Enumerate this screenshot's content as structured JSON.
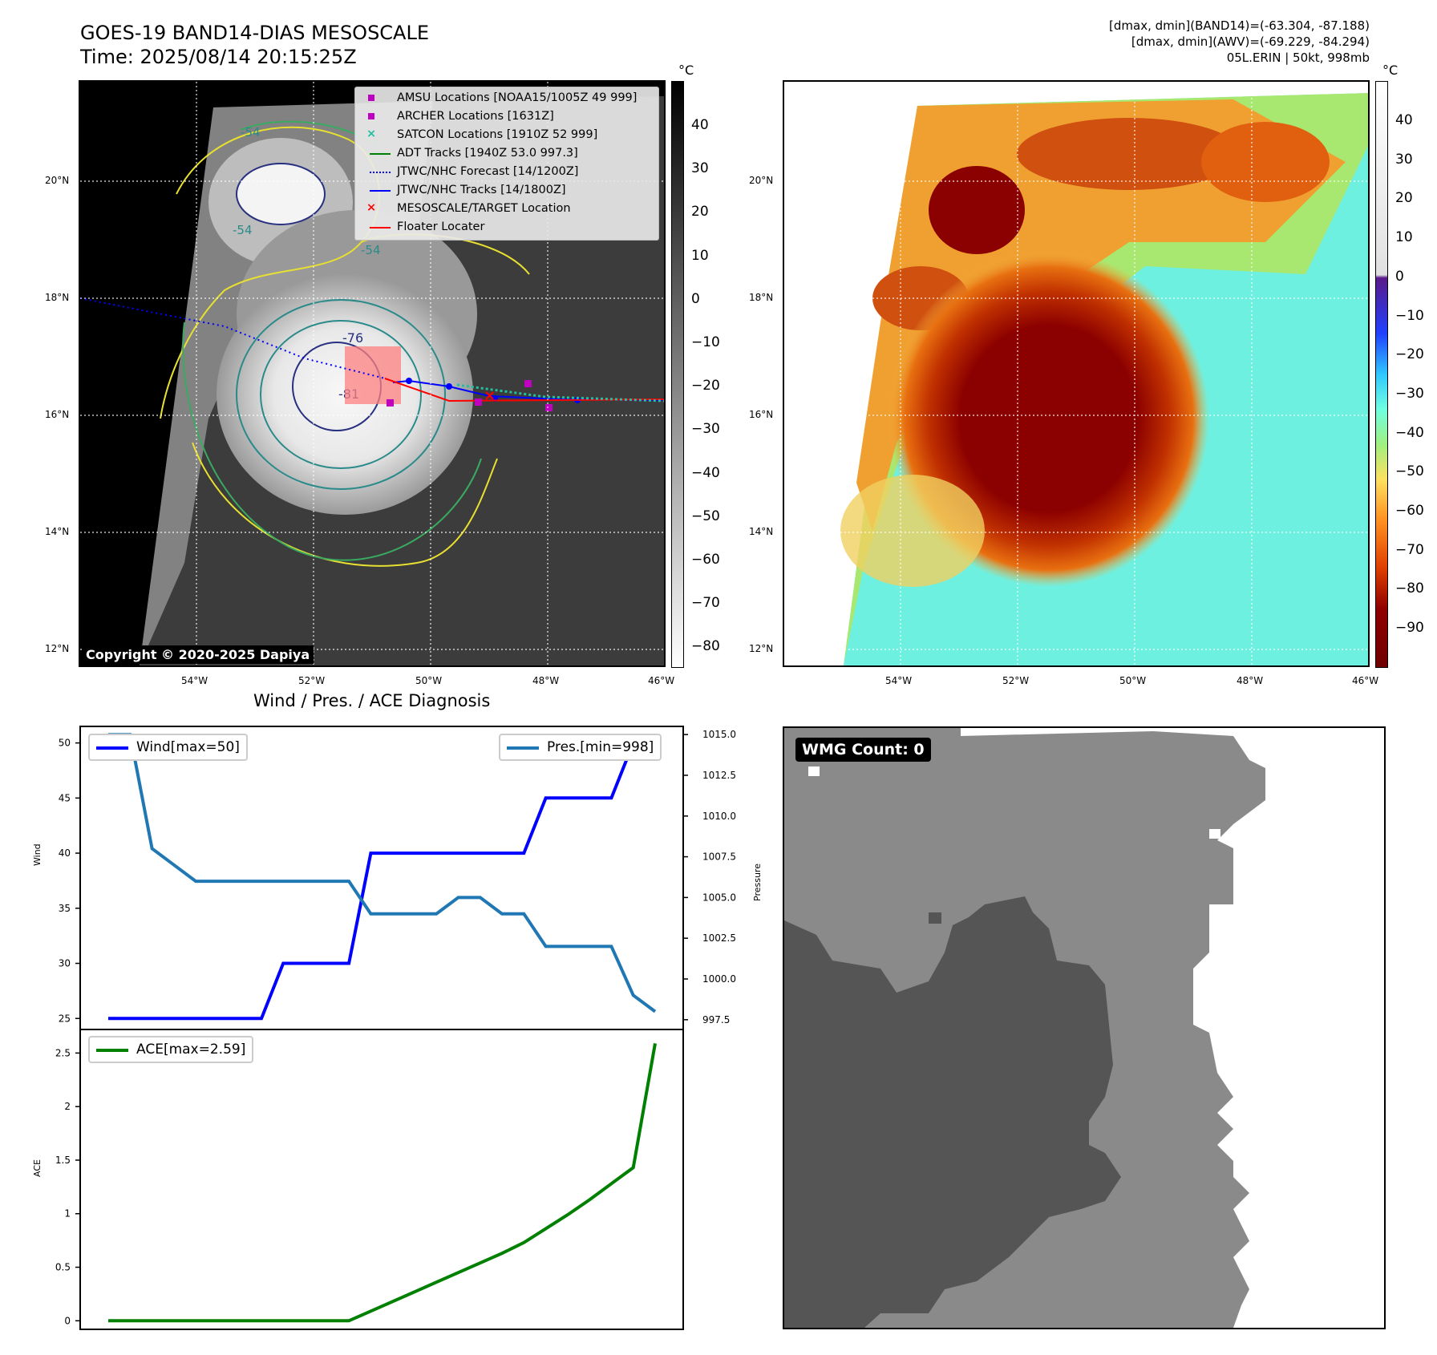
{
  "header": {
    "title": "GOES-19 BAND14-DIAS MESOSCALE",
    "time": "Time: 2025/08/14 20:15:25Z",
    "info_line1": "[dmax, dmin](BAND14)=(-63.304, -87.188)",
    "info_line2": "[dmax, dmin](AWV)=(-69.229, -84.294)",
    "info_line3": "05L.ERIN | 50kt, 998mb"
  },
  "maps": {
    "lat_labels": [
      "20°N",
      "18°N",
      "16°N",
      "14°N",
      "12°N"
    ],
    "lon_labels": [
      "54°W",
      "52°W",
      "50°W",
      "48°W",
      "46°W"
    ],
    "colorbar_unit": "°C",
    "left_cbar_ticks": [
      "40",
      "30",
      "20",
      "10",
      "0",
      "−10",
      "−20",
      "−30",
      "−40",
      "−50",
      "−60",
      "−70",
      "−80"
    ],
    "right_cbar_ticks": [
      "40",
      "30",
      "20",
      "10",
      "0",
      "−10",
      "−20",
      "−30",
      "−40",
      "−50",
      "−60",
      "−70",
      "−80",
      "−90"
    ],
    "contour_labels": [
      "-76",
      "-81",
      "-54",
      "-54",
      "-54"
    ],
    "copyright": "Copyright © 2020-2025 Dapiya",
    "legend": [
      {
        "label": "AMSU Locations [NOAA15/1005Z 49 999]",
        "color": "#c000c0",
        "symbol": "square"
      },
      {
        "label": "ARCHER Locations [1631Z]",
        "color": "#c000c0",
        "symbol": "square"
      },
      {
        "label": "SATCON Locations [1910Z 52 999]",
        "color": "#20c0a0",
        "symbol": "x"
      },
      {
        "label": "ADT Tracks [1940Z 53.0 997.3]",
        "color": "#008000",
        "symbol": "line"
      },
      {
        "label": "JTWC/NHC Forecast [14/1200Z]",
        "color": "#0000ff",
        "symbol": "dotted"
      },
      {
        "label": "JTWC/NHC Tracks [14/1800Z]",
        "color": "#0000ff",
        "symbol": "line-dot"
      },
      {
        "label": "MESOSCALE/TARGET Location",
        "color": "#ff0000",
        "symbol": "x"
      },
      {
        "label": "Floater Locater",
        "color": "#ff0000",
        "symbol": "line"
      }
    ]
  },
  "wmg": {
    "label": "WMG Count: 0"
  },
  "chart_data": [
    {
      "type": "line",
      "title": "Wind / Pres. / ACE Diagnosis",
      "ylabel": "Wind",
      "ylabel2": "Pressure",
      "ylim": [
        24,
        51.5
      ],
      "ylim2": [
        996.9,
        1015.5
      ],
      "yticks": [
        25,
        30,
        35,
        40,
        45,
        50
      ],
      "yticks2": [
        997.5,
        1000.0,
        1002.5,
        1005.0,
        1007.5,
        1010.0,
        1012.5,
        1015.0
      ],
      "x": [
        0,
        1,
        2,
        3,
        4,
        5,
        6,
        7,
        8,
        9,
        10,
        11,
        12,
        13,
        14,
        15,
        16,
        17,
        18,
        19,
        20,
        21,
        22,
        23,
        24,
        25
      ],
      "series": [
        {
          "name": "Wind[max=50]",
          "axis": "left",
          "color": "#0000ff",
          "values": [
            25,
            25,
            25,
            25,
            25,
            25,
            25,
            25,
            30,
            30,
            30,
            30,
            40,
            40,
            40,
            40,
            40,
            40,
            40,
            40,
            45,
            45,
            45,
            45,
            50,
            50
          ]
        },
        {
          "name": "Pres.[min=998]",
          "axis": "right",
          "color": "#1f77b4",
          "values": [
            1015,
            1015,
            1008,
            1007,
            1006,
            1006,
            1006,
            1006,
            1006,
            1006,
            1006,
            1006,
            1004,
            1004,
            1004,
            1004,
            1005,
            1005,
            1004,
            1004,
            1002,
            1002,
            1002,
            1002,
            999,
            998
          ]
        }
      ]
    },
    {
      "type": "line",
      "ylabel": "ACE",
      "ylim": [
        -0.08,
        2.72
      ],
      "yticks": [
        0.0,
        0.5,
        1.0,
        1.5,
        2.0,
        2.5
      ],
      "x": [
        0,
        1,
        2,
        3,
        4,
        5,
        6,
        7,
        8,
        9,
        10,
        11,
        12,
        13,
        14,
        15,
        16,
        17,
        18,
        19,
        20,
        21,
        22,
        23,
        24,
        25
      ],
      "series": [
        {
          "name": "ACE[max=2.59]",
          "axis": "left",
          "color": "#008000",
          "values": [
            0,
            0,
            0,
            0,
            0,
            0,
            0,
            0,
            0,
            0,
            0,
            0,
            0.09,
            0.18,
            0.27,
            0.36,
            0.45,
            0.54,
            0.63,
            0.73,
            0.86,
            0.99,
            1.13,
            1.28,
            1.43,
            2.59
          ]
        }
      ]
    }
  ]
}
